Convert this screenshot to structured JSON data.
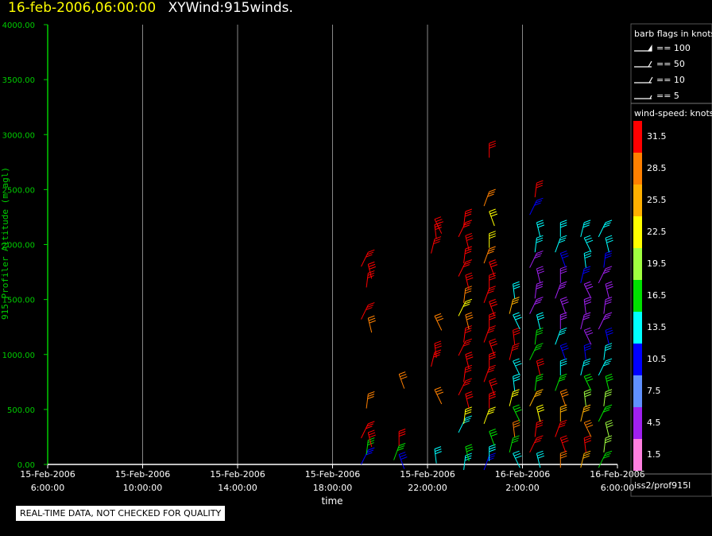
{
  "title": {
    "time": "16-feb-2006,06:00:00",
    "main": "XYWind:915winds."
  },
  "quality_note": "REAL-TIME DATA, NOT CHECKED FOR QUALITY",
  "legend": {
    "barb_title": "barb flags in knots",
    "barb_labels": [
      "== 100",
      "== 50",
      "== 10",
      "== 5"
    ],
    "speed_title": "wind-speed: knots",
    "speed_labels": [
      "31.5",
      "28.5",
      "25.5",
      "22.5",
      "19.5",
      "16.5",
      "13.5",
      "10.5",
      "7.5",
      "4.5",
      "1.5"
    ],
    "speed_colors": [
      "#ff0000",
      "#ff8000",
      "#ffb000",
      "#ffff00",
      "#a0ff40",
      "#00e000",
      "#00ffff",
      "#0000ff",
      "#6090ff",
      "#a020f0",
      "#ff80e0"
    ],
    "source": "iss2/prof915l"
  },
  "chart_data": {
    "type": "scatter",
    "subtype": "wind-barb time-height",
    "xlabel": "time",
    "ylabel": "915 Profiler Altitude (m agl)",
    "ylim": [
      0,
      4000
    ],
    "y_ticks": [
      "0.00",
      "500.00",
      "1000.00",
      "1500.00",
      "2000.00",
      "2500.00",
      "3000.00",
      "3500.00",
      "4000.00"
    ],
    "x_ticks": [
      [
        "15-Feb-2006",
        "6:00:00"
      ],
      [
        "15-Feb-2006",
        "10:00:00"
      ],
      [
        "15-Feb-2006",
        "14:00:00"
      ],
      [
        "15-Feb-2006",
        "18:00:00"
      ],
      [
        "15-Feb-2006",
        "22:00:00"
      ],
      [
        "16-Feb-2006",
        "2:00:00"
      ],
      [
        "16-Feb-2006",
        "6:00:00"
      ]
    ],
    "x_range_hours": [
      0,
      24
    ],
    "grid": true,
    "axis_color": "#00cc00",
    "columns": [
      {
        "t": 13.5,
        "barbs": [
          [
            130,
            "#0000ff"
          ],
          [
            220,
            "#00e000"
          ],
          [
            290,
            "#ff0000"
          ],
          [
            370,
            "#ff0000"
          ],
          [
            640,
            "#ff8000"
          ],
          [
            1330,
            "#ff8000"
          ],
          [
            1450,
            "#ff0000"
          ],
          [
            1740,
            "#ff0000"
          ],
          [
            1820,
            "#ff0000"
          ],
          [
            1930,
            "#ff0000"
          ]
        ]
      },
      {
        "t": 14.8,
        "barbs": [
          [
            90,
            "#0000ff"
          ],
          [
            170,
            "#00e000"
          ],
          [
            300,
            "#ff0000"
          ],
          [
            820,
            "#ff8000"
          ]
        ]
      },
      {
        "t": 16.3,
        "barbs": [
          [
            140,
            "#00ffff"
          ],
          [
            680,
            "#ff8000"
          ],
          [
            1020,
            "#ff0000"
          ],
          [
            1100,
            "#ff0000"
          ],
          [
            1350,
            "#ff8000"
          ],
          [
            2050,
            "#ff0000"
          ],
          [
            2180,
            "#ff0000"
          ],
          [
            2230,
            "#ff0000"
          ]
        ]
      },
      {
        "t": 17.6,
        "barbs": [
          [
            80,
            "#00ffff"
          ],
          [
            160,
            "#00e000"
          ],
          [
            420,
            "#00ffff"
          ],
          [
            500,
            "#ffff00"
          ],
          [
            640,
            "#ff0000"
          ],
          [
            760,
            "#ff0000"
          ],
          [
            880,
            "#ff0000"
          ],
          [
            1000,
            "#ff0000"
          ],
          [
            1120,
            "#ff0000"
          ],
          [
            1240,
            "#ff0000"
          ],
          [
            1360,
            "#ff8000"
          ],
          [
            1480,
            "#ffff00"
          ],
          [
            1600,
            "#ff8000"
          ],
          [
            1720,
            "#ff0000"
          ],
          [
            1840,
            "#ff0000"
          ],
          [
            1960,
            "#ff0000"
          ],
          [
            2080,
            "#ff0000"
          ],
          [
            2200,
            "#ff0000"
          ],
          [
            2300,
            "#ff0000"
          ]
        ]
      },
      {
        "t": 18.6,
        "barbs": [
          [
            80,
            "#0000ff"
          ],
          [
            160,
            "#00ffff"
          ],
          [
            300,
            "#00e000"
          ],
          [
            500,
            "#ffff00"
          ],
          [
            640,
            "#ff0000"
          ],
          [
            760,
            "#ff0000"
          ],
          [
            880,
            "#ff0000"
          ],
          [
            1000,
            "#ff0000"
          ],
          [
            1120,
            "#ff0000"
          ],
          [
            1240,
            "#ff0000"
          ],
          [
            1360,
            "#ff0000"
          ],
          [
            1480,
            "#ff0000"
          ],
          [
            1600,
            "#ff0000"
          ],
          [
            1720,
            "#ff0000"
          ],
          [
            1840,
            "#ff0000"
          ],
          [
            1960,
            "#ff8000"
          ],
          [
            2100,
            "#ffff00"
          ],
          [
            2300,
            "#ffff00"
          ],
          [
            2480,
            "#ff8000"
          ],
          [
            2920,
            "#ff0000"
          ]
        ]
      },
      {
        "t": 19.6,
        "barbs": [
          [
            100,
            "#00ffff"
          ],
          [
            240,
            "#00e000"
          ],
          [
            380,
            "#ff8000"
          ],
          [
            520,
            "#00e000"
          ],
          [
            660,
            "#ffff00"
          ],
          [
            800,
            "#00ffff"
          ],
          [
            940,
            "#00ffff"
          ],
          [
            1080,
            "#ff0000"
          ],
          [
            1220,
            "#ff0000"
          ],
          [
            1360,
            "#00ffff"
          ],
          [
            1500,
            "#ffb000"
          ],
          [
            1640,
            "#00ffff"
          ]
        ]
      },
      {
        "t": 20.6,
        "barbs": [
          [
            100,
            "#00ffff"
          ],
          [
            240,
            "#ff0000"
          ],
          [
            380,
            "#ff0000"
          ],
          [
            520,
            "#ffff00"
          ],
          [
            660,
            "#ffb000"
          ],
          [
            800,
            "#00e000"
          ],
          [
            940,
            "#ff0000"
          ],
          [
            1080,
            "#00e000"
          ],
          [
            1220,
            "#00e000"
          ],
          [
            1360,
            "#00ffff"
          ],
          [
            1500,
            "#a020f0"
          ],
          [
            1640,
            "#a020f0"
          ],
          [
            1780,
            "#a020f0"
          ],
          [
            1920,
            "#a020f0"
          ],
          [
            2060,
            "#00ffff"
          ],
          [
            2200,
            "#00ffff"
          ],
          [
            2400,
            "#0000ff"
          ],
          [
            2560,
            "#ff0000"
          ]
        ]
      },
      {
        "t": 21.6,
        "barbs": [
          [
            100,
            "#ff8000"
          ],
          [
            240,
            "#ff0000"
          ],
          [
            380,
            "#ff0000"
          ],
          [
            520,
            "#ffb000"
          ],
          [
            660,
            "#ff8000"
          ],
          [
            800,
            "#00e000"
          ],
          [
            940,
            "#00ffff"
          ],
          [
            1080,
            "#0000ff"
          ],
          [
            1220,
            "#00ffff"
          ],
          [
            1360,
            "#a020f0"
          ],
          [
            1500,
            "#a020f0"
          ],
          [
            1640,
            "#a020f0"
          ],
          [
            1780,
            "#a020f0"
          ],
          [
            1920,
            "#0000ff"
          ],
          [
            2060,
            "#00ffff"
          ],
          [
            2200,
            "#00ffff"
          ]
        ]
      },
      {
        "t": 22.6,
        "barbs": [
          [
            100,
            "#ffb000"
          ],
          [
            240,
            "#ff0000"
          ],
          [
            380,
            "#ff8000"
          ],
          [
            520,
            "#ffb000"
          ],
          [
            660,
            "#a0ff40"
          ],
          [
            800,
            "#00e000"
          ],
          [
            940,
            "#00ffff"
          ],
          [
            1080,
            "#0000ff"
          ],
          [
            1220,
            "#a020f0"
          ],
          [
            1360,
            "#a020f0"
          ],
          [
            1500,
            "#a020f0"
          ],
          [
            1640,
            "#a020f0"
          ],
          [
            1780,
            "#0000ff"
          ],
          [
            1920,
            "#00ffff"
          ],
          [
            2060,
            "#00ffff"
          ],
          [
            2200,
            "#00ffff"
          ]
        ]
      },
      {
        "t": 23.5,
        "barbs": [
          [
            100,
            "#00e000"
          ],
          [
            240,
            "#a0ff40"
          ],
          [
            380,
            "#a0ff40"
          ],
          [
            520,
            "#00e000"
          ],
          [
            660,
            "#a0ff40"
          ],
          [
            800,
            "#00e000"
          ],
          [
            940,
            "#00ffff"
          ],
          [
            1080,
            "#00ffff"
          ],
          [
            1220,
            "#0000ff"
          ],
          [
            1360,
            "#a020f0"
          ],
          [
            1500,
            "#a020f0"
          ],
          [
            1640,
            "#a020f0"
          ],
          [
            1780,
            "#a020f0"
          ],
          [
            1920,
            "#0000ff"
          ],
          [
            2060,
            "#00ffff"
          ],
          [
            2200,
            "#00ffff"
          ]
        ]
      }
    ]
  }
}
